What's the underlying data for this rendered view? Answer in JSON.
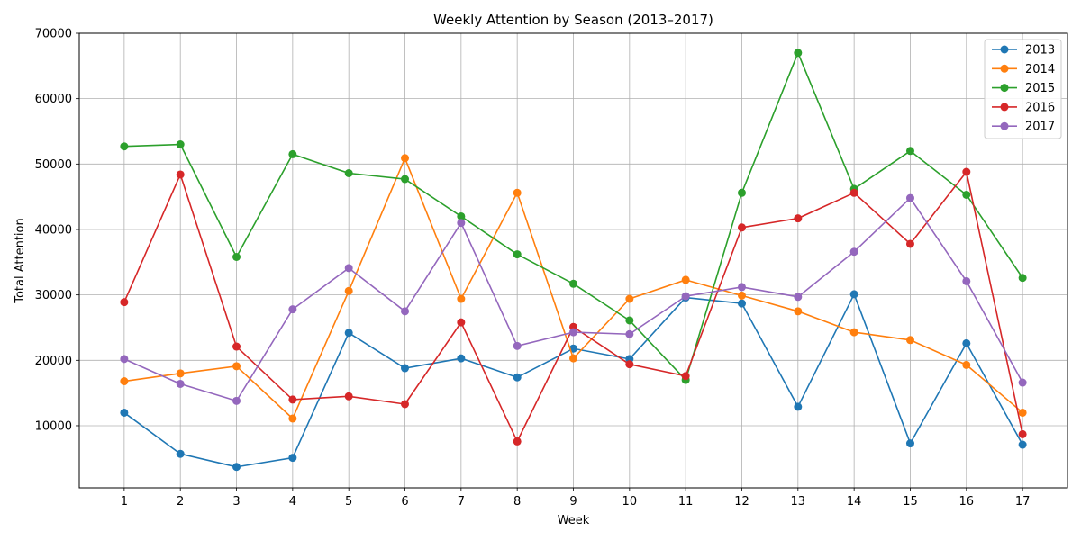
{
  "chart_data": {
    "type": "line",
    "title": "Weekly Attention by Season (2013–2017)",
    "xlabel": "Week",
    "ylabel": "Total Attention",
    "x": [
      1,
      2,
      3,
      4,
      5,
      6,
      7,
      8,
      9,
      10,
      11,
      12,
      13,
      14,
      15,
      16,
      17
    ],
    "xlim": [
      0.2,
      17.8
    ],
    "ylim": [
      500,
      70000
    ],
    "yticks": [
      10000,
      20000,
      30000,
      40000,
      50000,
      60000,
      70000
    ],
    "grid": true,
    "legend_position": "top-right",
    "series": [
      {
        "name": "2013",
        "color": "#1f77b4",
        "values": [
          12000,
          5700,
          3700,
          5100,
          24200,
          18800,
          20300,
          17400,
          21800,
          20200,
          29600,
          28700,
          12900,
          30100,
          7300,
          22600,
          7100
        ]
      },
      {
        "name": "2014",
        "color": "#ff7f0e",
        "values": [
          16800,
          18000,
          19100,
          11100,
          30600,
          50900,
          29400,
          45600,
          20300,
          29400,
          32300,
          29900,
          27500,
          24300,
          23100,
          19300,
          12000
        ]
      },
      {
        "name": "2015",
        "color": "#2ca02c",
        "values": [
          52700,
          53000,
          35800,
          51500,
          48600,
          47700,
          42000,
          36200,
          31700,
          26100,
          17000,
          45600,
          67000,
          46200,
          52000,
          45300,
          32600
        ]
      },
      {
        "name": "2016",
        "color": "#d62728",
        "values": [
          28900,
          48400,
          22100,
          14000,
          14500,
          13300,
          25800,
          7600,
          25100,
          19400,
          17600,
          40300,
          41700,
          45600,
          37800,
          48800,
          8700
        ]
      },
      {
        "name": "2017",
        "color": "#9467bd",
        "values": [
          20200,
          16400,
          13800,
          27800,
          34100,
          27500,
          41000,
          22200,
          24300,
          24000,
          29800,
          31200,
          29700,
          36600,
          44800,
          32100,
          16600
        ]
      }
    ]
  }
}
